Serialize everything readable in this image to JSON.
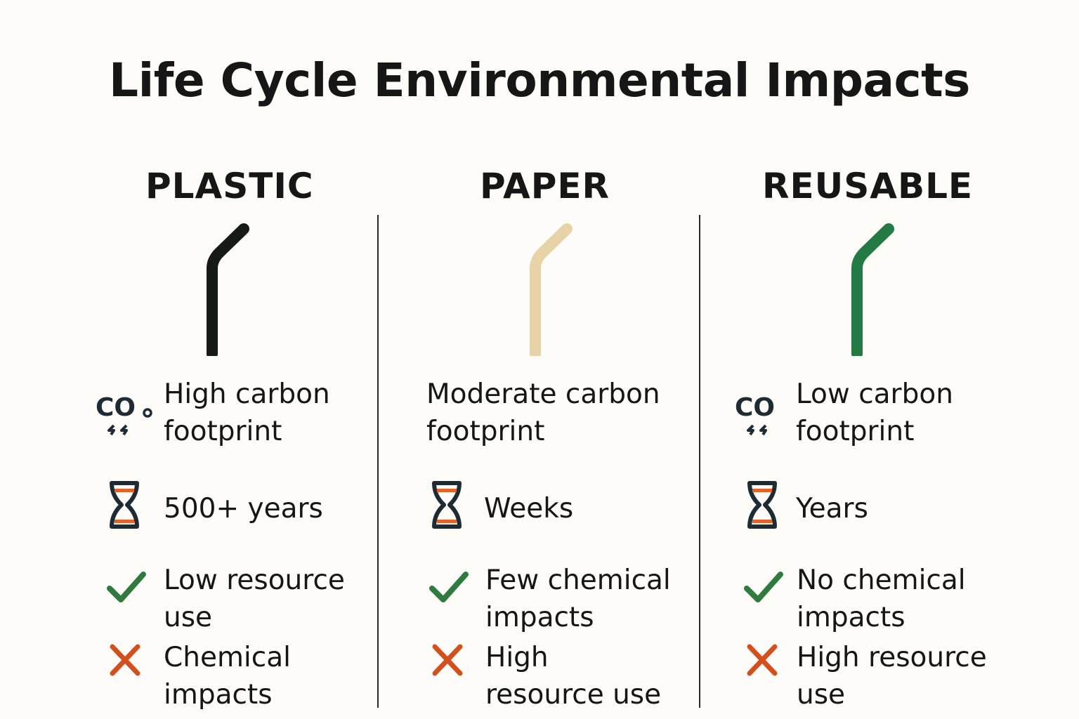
{
  "title": "Life Cycle Environmental Impacts",
  "colors": {
    "plastic_straw": "#151a16",
    "paper_straw": "#e8d3a8",
    "reusable_straw": "#237a43",
    "check": "#2f7a3f",
    "cross": "#d2501e",
    "hourglass_frame": "#1f2b33",
    "hourglass_sand": "#e5622a"
  },
  "columns": [
    {
      "heading": "PLASTIC",
      "straw_color": "#151a16",
      "carbon_icon": "co2-icon",
      "carbon_icon_text": "CO",
      "carbon": [
        "High carbon",
        "footprint"
      ],
      "decomposition": "500+ years",
      "positive": [
        "Low resource",
        "use"
      ],
      "negative": [
        "Chemical",
        "impacts"
      ]
    },
    {
      "heading": "PAPER",
      "straw_color": "#e8d3a8",
      "carbon": [
        "Moderate carbon",
        "footprint"
      ],
      "decomposition": "Weeks",
      "positive": [
        "Few chemical",
        "impacts"
      ],
      "negative": [
        "High",
        "resource use"
      ]
    },
    {
      "heading": "REUSABLE",
      "straw_color": "#237a43",
      "carbon_icon": "co2-icon",
      "carbon_icon_text": "CO",
      "carbon": [
        "Low carbon",
        "footprint"
      ],
      "decomposition": "Years",
      "positive": [
        "No chemical",
        "impacts"
      ],
      "negative": [
        "High resource",
        "use"
      ]
    }
  ]
}
